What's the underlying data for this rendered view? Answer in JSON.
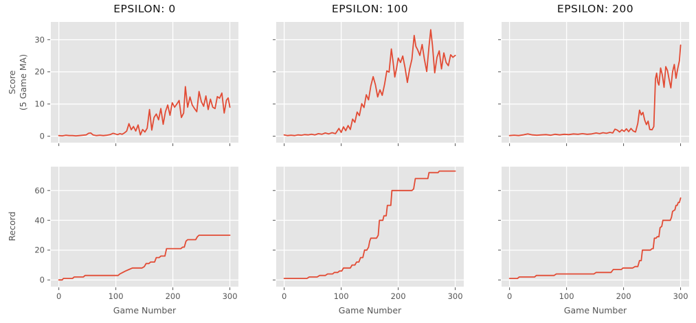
{
  "figure": {
    "background": "#ffffff",
    "axes_background": "#e5e5e5",
    "grid_color": "#ffffff",
    "line_color": "#e24a33",
    "tick_color": "#555555",
    "title_color": "#111111",
    "column_titles": [
      "EPSILON: 0",
      "EPSILON: 100",
      "EPSILON: 200"
    ]
  },
  "chart_data": [
    {
      "id": "score-epsilon-0",
      "type": "line",
      "row": 0,
      "col": 0,
      "title": "EPSILON: 0",
      "ylabel": "Score\n(5 Game MA)",
      "xlim": [
        -14,
        315
      ],
      "ylim": [
        -2,
        35.5
      ],
      "xticks": [
        0,
        100,
        200,
        300
      ],
      "yticks": [
        0,
        10,
        20,
        30
      ],
      "xticklabels": null,
      "yticklabels": [
        "0",
        "10",
        "20",
        "30"
      ],
      "grid": true,
      "legend": null,
      "x": [
        0,
        6,
        12,
        18,
        24,
        30,
        36,
        42,
        48,
        52,
        56,
        60,
        66,
        72,
        78,
        84,
        90,
        95,
        99,
        103,
        107,
        111,
        115,
        119,
        123,
        127,
        131,
        135,
        139,
        143,
        147,
        151,
        155,
        159,
        163,
        167,
        171,
        175,
        179,
        183,
        187,
        191,
        195,
        199,
        203,
        207,
        211,
        215,
        219,
        222,
        226,
        230,
        234,
        238,
        242,
        246,
        250,
        254,
        258,
        262,
        266,
        270,
        274,
        278,
        282,
        286,
        290,
        294,
        297,
        300
      ],
      "y": [
        0.2,
        0.1,
        0.3,
        0.2,
        0.2,
        0.1,
        0.2,
        0.3,
        0.4,
        0.9,
        1.0,
        0.4,
        0.2,
        0.3,
        0.2,
        0.3,
        0.5,
        0.9,
        0.7,
        0.5,
        0.8,
        0.6,
        1.0,
        1.6,
        3.9,
        2.0,
        3.0,
        1.6,
        3.5,
        0.4,
        2.1,
        1.3,
        2.5,
        8.3,
        1.9,
        5.8,
        6.9,
        5.1,
        8.6,
        3.7,
        7.6,
        9.7,
        6.5,
        10.4,
        9.0,
        10.0,
        11.1,
        5.8,
        7.2,
        15.4,
        9.0,
        12.2,
        9.7,
        8.6,
        7.6,
        13.9,
        10.7,
        9.3,
        12.5,
        8.3,
        11.5,
        9.0,
        8.6,
        12.3,
        11.8,
        13.4,
        7.2,
        11.2,
        11.9,
        9.0
      ]
    },
    {
      "id": "score-epsilon-100",
      "type": "line",
      "row": 0,
      "col": 1,
      "title": "EPSILON: 100",
      "ylabel": null,
      "xlim": [
        -14,
        315
      ],
      "ylim": [
        -2,
        35.5
      ],
      "xticks": [
        0,
        100,
        200,
        300
      ],
      "yticks": [
        0,
        10,
        20,
        30
      ],
      "xticklabels": null,
      "yticklabels": null,
      "grid": true,
      "legend": null,
      "x": [
        0,
        6,
        12,
        18,
        24,
        30,
        36,
        42,
        48,
        54,
        60,
        66,
        72,
        78,
        84,
        90,
        96,
        100,
        104,
        108,
        112,
        116,
        120,
        124,
        128,
        132,
        136,
        140,
        144,
        148,
        152,
        156,
        160,
        164,
        168,
        172,
        176,
        180,
        184,
        188,
        191,
        194,
        197,
        200,
        204,
        208,
        212,
        216,
        220,
        224,
        228,
        231,
        234,
        238,
        242,
        246,
        250,
        254,
        257,
        260,
        264,
        268,
        272,
        276,
        280,
        284,
        288,
        292,
        296,
        300
      ],
      "y": [
        0.4,
        0.2,
        0.3,
        0.2,
        0.4,
        0.3,
        0.5,
        0.4,
        0.6,
        0.4,
        0.8,
        0.6,
        1.0,
        0.7,
        1.1,
        0.8,
        2.4,
        1.2,
        2.9,
        1.7,
        3.3,
        2.1,
        5.3,
        4.3,
        7.5,
        6.4,
        10.1,
        8.9,
        12.9,
        11.3,
        15.6,
        18.5,
        16.0,
        12.2,
        14.4,
        12.7,
        16.1,
        20.3,
        19.9,
        27.1,
        23.1,
        18.4,
        21.0,
        24.3,
        22.9,
        24.9,
        21.3,
        16.7,
        20.9,
        23.9,
        31.3,
        27.9,
        26.9,
        25.1,
        28.5,
        23.9,
        20.1,
        27.9,
        33.1,
        28.3,
        19.7,
        24.5,
        26.5,
        20.9,
        25.9,
        22.9,
        21.9,
        25.3,
        24.5,
        25.1
      ]
    },
    {
      "id": "score-epsilon-200",
      "type": "line",
      "row": 0,
      "col": 2,
      "title": "EPSILON: 200",
      "ylabel": null,
      "xlim": [
        -14,
        315
      ],
      "ylim": [
        -2,
        35.5
      ],
      "xticks": [
        0,
        100,
        200,
        300
      ],
      "yticks": [
        0,
        10,
        20,
        30
      ],
      "xticklabels": null,
      "yticklabels": null,
      "grid": true,
      "legend": null,
      "x": [
        0,
        8,
        16,
        24,
        32,
        40,
        48,
        56,
        64,
        72,
        80,
        88,
        96,
        104,
        112,
        120,
        128,
        136,
        144,
        152,
        158,
        164,
        170,
        176,
        181,
        185,
        189,
        193,
        197,
        201,
        205,
        209,
        213,
        217,
        221,
        225,
        228,
        231,
        234,
        237,
        240,
        243,
        246,
        250,
        253,
        256,
        258,
        260,
        262,
        265,
        268,
        271,
        274,
        277,
        280,
        283,
        286,
        289,
        292,
        295,
        298,
        300
      ],
      "y": [
        0.2,
        0.3,
        0.2,
        0.4,
        0.7,
        0.4,
        0.3,
        0.4,
        0.5,
        0.3,
        0.6,
        0.4,
        0.6,
        0.5,
        0.7,
        0.6,
        0.8,
        0.6,
        0.7,
        1.0,
        0.8,
        1.1,
        0.9,
        1.2,
        1.0,
        2.2,
        1.9,
        1.3,
        2.0,
        1.5,
        2.3,
        1.4,
        2.4,
        1.6,
        1.3,
        4.0,
        8.1,
        6.6,
        7.4,
        5.0,
        3.6,
        4.7,
        2.1,
        2.0,
        3.0,
        17.8,
        19.6,
        16.8,
        15.9,
        21.2,
        19.0,
        15.2,
        21.6,
        20.4,
        17.5,
        15.0,
        20.0,
        22.3,
        18.0,
        21.0,
        23.5,
        28.3
      ]
    },
    {
      "id": "record-epsilon-0",
      "type": "line",
      "row": 1,
      "col": 0,
      "title": null,
      "ylabel": "Record",
      "xlabel": "Game Number",
      "xlim": [
        -14,
        315
      ],
      "ylim": [
        -4.5,
        76
      ],
      "xticks": [
        0,
        100,
        200,
        300
      ],
      "yticks": [
        0,
        20,
        40,
        60
      ],
      "xticklabels": [
        "0",
        "100",
        "200",
        "300"
      ],
      "yticklabels": [
        "0",
        "20",
        "40",
        "60"
      ],
      "grid": true,
      "legend": null,
      "x": [
        0,
        6,
        8,
        24,
        27,
        43,
        46,
        104,
        107,
        112,
        117,
        123,
        129,
        146,
        150,
        153,
        158,
        161,
        168,
        171,
        176,
        179,
        186,
        189,
        214,
        217,
        220,
        223,
        226,
        240,
        243,
        246,
        300
      ],
      "y": [
        0,
        0,
        1,
        1,
        2,
        2,
        3,
        3,
        4,
        5,
        6,
        7,
        8,
        8,
        9,
        11,
        11,
        12,
        12,
        15,
        15,
        16,
        16,
        21,
        21,
        22,
        22,
        26,
        27,
        27,
        29,
        30,
        30
      ]
    },
    {
      "id": "record-epsilon-100",
      "type": "line",
      "row": 1,
      "col": 1,
      "title": null,
      "ylabel": null,
      "xlabel": "Game Number",
      "xlim": [
        -14,
        315
      ],
      "ylim": [
        -4.5,
        76
      ],
      "xticks": [
        0,
        100,
        200,
        300
      ],
      "yticks": [
        0,
        20,
        40,
        60
      ],
      "xticklabels": [
        "0",
        "100",
        "200",
        "300"
      ],
      "yticklabels": null,
      "grid": true,
      "legend": null,
      "x": [
        0,
        40,
        44,
        58,
        62,
        72,
        76,
        85,
        88,
        94,
        97,
        101,
        104,
        116,
        119,
        124,
        127,
        131,
        134,
        138,
        141,
        145,
        148,
        150,
        152,
        162,
        165,
        167,
        173,
        175,
        179,
        181,
        187,
        189,
        224,
        227,
        230,
        252,
        254,
        270,
        272,
        300
      ],
      "y": [
        1,
        1,
        2,
        2,
        3,
        3,
        4,
        4,
        5,
        5,
        6,
        6,
        8,
        8,
        10,
        10,
        12,
        12,
        15,
        15,
        20,
        20,
        22,
        26,
        28,
        28,
        30,
        40,
        40,
        43,
        43,
        50,
        50,
        60,
        60,
        61,
        68,
        68,
        72,
        72,
        73,
        73
      ]
    },
    {
      "id": "record-epsilon-200",
      "type": "line",
      "row": 1,
      "col": 2,
      "title": null,
      "ylabel": null,
      "xlabel": "Game Number",
      "xlim": [
        -14,
        315
      ],
      "ylim": [
        -4.5,
        76
      ],
      "xticks": [
        0,
        100,
        200,
        300
      ],
      "yticks": [
        0,
        20,
        40,
        60
      ],
      "xticklabels": [
        "0",
        "100",
        "200",
        "300"
      ],
      "yticklabels": null,
      "grid": true,
      "legend": null,
      "x": [
        0,
        14,
        17,
        44,
        47,
        78,
        82,
        148,
        152,
        178,
        182,
        196,
        199,
        216,
        220,
        225,
        228,
        231,
        233,
        247,
        250,
        252,
        254,
        257,
        259,
        262,
        264,
        267,
        269,
        282,
        284,
        286,
        290,
        292,
        294,
        296,
        298,
        300
      ],
      "y": [
        1,
        1,
        2,
        2,
        3,
        3,
        4,
        4,
        5,
        5,
        7,
        7,
        8,
        8,
        9,
        9,
        13,
        13,
        20,
        20,
        21,
        21,
        28,
        28,
        29,
        29,
        35,
        36,
        40,
        40,
        42,
        46,
        47,
        50,
        50,
        52,
        52,
        55
      ]
    }
  ]
}
